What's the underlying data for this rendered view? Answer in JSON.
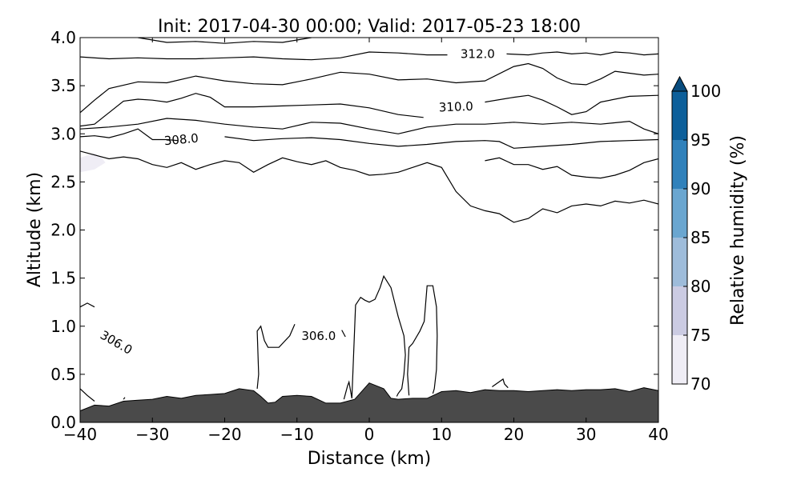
{
  "chart_data": {
    "type": "contour",
    "title": "Init: 2017-04-30 00:00; Valid: 2017-05-23 18:00",
    "xlabel": "Distance (km)",
    "ylabel": "Altitude (km)",
    "xlim": [
      -40,
      40
    ],
    "ylim": [
      0,
      4
    ],
    "xticks": [
      "−40",
      "−30",
      "−20",
      "−10",
      "0",
      "10",
      "20",
      "30",
      "40"
    ],
    "yticks": [
      "0.0",
      "0.5",
      "1.0",
      "1.5",
      "2.0",
      "2.5",
      "3.0",
      "3.5",
      "4.0"
    ],
    "colorbar": {
      "label": "Relative humidity (%)",
      "levels": [
        70,
        75,
        80,
        85,
        90,
        95,
        100
      ],
      "tick_labels": [
        "70",
        "75",
        "80",
        "85",
        "90",
        "95",
        "100"
      ],
      "colors": [
        "#efedf5",
        "#cbcbe2",
        "#9ebcda",
        "#6aa6d0",
        "#3081bb",
        "#0d5f9a",
        "#084c7e"
      ],
      "extend": "max"
    },
    "terrain": {
      "color": "#4a4a4a",
      "x": [
        -40,
        -38,
        -36,
        -34,
        -32,
        -30,
        -28,
        -26,
        -24,
        -22,
        -20,
        -18,
        -16,
        -15,
        -14,
        -13,
        -12,
        -10,
        -8,
        -6,
        -4,
        -2,
        0,
        2,
        3,
        4,
        6,
        8,
        10,
        12,
        14,
        16,
        18,
        20,
        22,
        24,
        26,
        28,
        30,
        32,
        34,
        36,
        38,
        40
      ],
      "y": [
        0.12,
        0.18,
        0.17,
        0.22,
        0.23,
        0.24,
        0.27,
        0.25,
        0.28,
        0.29,
        0.3,
        0.35,
        0.33,
        0.27,
        0.2,
        0.21,
        0.27,
        0.28,
        0.27,
        0.2,
        0.2,
        0.24,
        0.41,
        0.35,
        0.25,
        0.24,
        0.25,
        0.25,
        0.32,
        0.33,
        0.31,
        0.34,
        0.33,
        0.33,
        0.32,
        0.33,
        0.34,
        0.33,
        0.34,
        0.34,
        0.35,
        0.32,
        0.36,
        0.33
      ]
    },
    "humidity_patch": {
      "level": "70-75",
      "x": [
        -40,
        -38,
        -37,
        -36.5,
        -38,
        -40
      ],
      "y": [
        2.75,
        2.8,
        2.75,
        2.7,
        2.63,
        2.6
      ]
    },
    "contour_labels": [
      {
        "text": "312.0",
        "x": 15,
        "y": 3.83,
        "rotation": 0
      },
      {
        "text": "310.0",
        "x": 12,
        "y": 3.28,
        "rotation": -2
      },
      {
        "text": "308.0",
        "x": -26,
        "y": 2.94,
        "rotation": -5
      },
      {
        "text": "306.0",
        "x": -35,
        "y": 0.83,
        "rotation": 30
      },
      {
        "text": "306.0",
        "x": -7,
        "y": 0.9,
        "rotation": 0
      }
    ],
    "contours": [
      {
        "level": "top",
        "x": [
          -32,
          -28,
          -24,
          -20,
          -16,
          -12,
          -8
        ],
        "y": [
          4.0,
          3.95,
          3.96,
          3.94,
          3.96,
          3.95,
          4.0
        ]
      },
      {
        "level": "312.0",
        "x": [
          -40,
          -36,
          -32,
          -28,
          -24,
          -20,
          -16,
          -12,
          -8,
          -4,
          0,
          4,
          8,
          10.8,
          null,
          19,
          22,
          24,
          26,
          28,
          30,
          32,
          34,
          36,
          38,
          40
        ],
        "y": [
          3.8,
          3.78,
          3.79,
          3.78,
          3.78,
          3.79,
          3.8,
          3.78,
          3.77,
          3.79,
          3.85,
          3.84,
          3.82,
          3.82,
          null,
          3.83,
          3.82,
          3.84,
          3.85,
          3.83,
          3.84,
          3.82,
          3.85,
          3.84,
          3.82,
          3.83
        ]
      },
      {
        "level": "311.5",
        "x": [
          -40,
          -38,
          -36,
          -32,
          -28,
          -24,
          -20,
          -16,
          -12,
          -8,
          -4,
          0,
          4,
          8,
          12,
          16,
          20,
          22,
          24,
          26,
          28,
          30,
          32,
          34,
          36,
          38,
          40
        ],
        "y": [
          3.22,
          3.35,
          3.47,
          3.54,
          3.53,
          3.6,
          3.55,
          3.52,
          3.51,
          3.57,
          3.64,
          3.62,
          3.56,
          3.57,
          3.53,
          3.55,
          3.7,
          3.73,
          3.68,
          3.58,
          3.52,
          3.51,
          3.57,
          3.65,
          3.63,
          3.61,
          3.62
        ]
      },
      {
        "level": "310.0",
        "x": [
          -40,
          -38,
          -36,
          -34,
          -32,
          -30,
          -28,
          -26,
          -24,
          -22,
          -20,
          -16,
          -12,
          -8,
          -4,
          0,
          4,
          7.5,
          null,
          16,
          20,
          22,
          24,
          26,
          28,
          30,
          32,
          36,
          40
        ],
        "y": [
          3.08,
          3.1,
          3.22,
          3.34,
          3.36,
          3.35,
          3.33,
          3.37,
          3.42,
          3.38,
          3.28,
          3.28,
          3.29,
          3.3,
          3.31,
          3.27,
          3.2,
          3.17,
          null,
          3.33,
          3.38,
          3.4,
          3.35,
          3.28,
          3.2,
          3.23,
          3.33,
          3.39,
          3.4
        ]
      },
      {
        "level": "309.5",
        "x": [
          -40,
          -36,
          -32,
          -28,
          -24,
          -20,
          -16,
          -12,
          -8,
          -4,
          0,
          4,
          8,
          12,
          16,
          20,
          24,
          28,
          32,
          36,
          38,
          40
        ],
        "y": [
          3.05,
          3.07,
          3.1,
          3.16,
          3.14,
          3.1,
          3.07,
          3.05,
          3.12,
          3.11,
          3.05,
          3.0,
          3.07,
          3.1,
          3.1,
          3.12,
          3.1,
          3.12,
          3.1,
          3.13,
          3.05,
          3.0
        ]
      },
      {
        "level": "308.0",
        "x": [
          -40,
          -38,
          -36,
          -34,
          -32,
          -30,
          -28,
          -26.5,
          null,
          -20,
          -16,
          -12,
          -8,
          -4,
          0,
          4,
          8,
          12,
          16,
          18,
          20,
          24,
          28,
          32,
          36,
          40
        ],
        "y": [
          2.97,
          2.98,
          2.96,
          3.0,
          3.05,
          2.94,
          2.94,
          2.93,
          null,
          2.97,
          2.93,
          2.95,
          2.96,
          2.94,
          2.9,
          2.87,
          2.89,
          2.92,
          2.93,
          2.92,
          2.85,
          2.87,
          2.89,
          2.92,
          2.93,
          2.94
        ]
      },
      {
        "level": "307.0",
        "x": [
          -40,
          -38,
          -36,
          -34,
          -32,
          -30,
          -28,
          -26,
          -24,
          -22,
          -20,
          -18,
          -16,
          -14,
          -12,
          -10,
          -8,
          -6,
          -4,
          -2,
          0,
          2,
          4,
          6,
          8,
          10,
          12,
          14,
          16,
          18,
          20,
          22,
          24,
          26,
          28,
          30,
          32,
          34,
          36,
          38,
          40
        ],
        "y": [
          2.82,
          2.78,
          2.74,
          2.76,
          2.74,
          2.68,
          2.65,
          2.7,
          2.63,
          2.68,
          2.72,
          2.7,
          2.6,
          2.68,
          2.75,
          2.71,
          2.68,
          2.72,
          2.65,
          2.62,
          2.57,
          2.58,
          2.6,
          2.65,
          2.7,
          2.65,
          2.4,
          2.25,
          2.2,
          2.17,
          2.08,
          2.12,
          2.22,
          2.18,
          2.25,
          2.27,
          2.25,
          2.3,
          2.28,
          2.31,
          2.27
        ]
      },
      {
        "level": "307.0b",
        "x": [
          16,
          18,
          20,
          22,
          24,
          26,
          28,
          30,
          32,
          34,
          36,
          38,
          40
        ],
        "y": [
          2.72,
          2.75,
          2.68,
          2.68,
          2.63,
          2.66,
          2.57,
          2.55,
          2.54,
          2.57,
          2.62,
          2.7,
          2.74
        ]
      },
      {
        "level": "306.0",
        "x": [
          -40,
          -39,
          -38
        ],
        "y": [
          1.2,
          1.24,
          1.2
        ]
      },
      {
        "level": "306.0",
        "x": [
          -40,
          -39,
          -38
        ],
        "y": [
          0.35,
          0.28,
          0.22
        ]
      },
      {
        "level": "306.0",
        "x": [
          -34,
          -33.8
        ],
        "y": [
          0.24,
          0.26
        ]
      },
      {
        "level": "306.0",
        "x": [
          -15.5,
          -15.3,
          -15.5,
          -15,
          -14.5,
          -14,
          -12.5,
          -11,
          -10.3
        ],
        "y": [
          0.35,
          0.5,
          0.95,
          1.0,
          0.85,
          0.78,
          0.78,
          0.9,
          1.02
        ]
      },
      {
        "level": "306.0",
        "x": [
          -3.5,
          -3,
          -2.8,
          -2.4,
          -1.9,
          -1.2,
          -0.6,
          0,
          0.8,
          1.5,
          2,
          3,
          4,
          4.8,
          5,
          4.8,
          4.5,
          4,
          3.8
        ],
        "y": [
          0.24,
          0.38,
          0.42,
          0.25,
          1.22,
          1.3,
          1.27,
          1.25,
          1.28,
          1.4,
          1.52,
          1.4,
          1.1,
          0.9,
          0.7,
          0.5,
          0.35,
          0.3,
          0.27
        ]
      },
      {
        "level": "306.0",
        "x": [
          -3.8,
          -3.3
        ],
        "y": [
          0.96,
          0.89
        ]
      },
      {
        "level": "306.0",
        "x": [
          5.5,
          5.3,
          5.5,
          6,
          7,
          7.6,
          8,
          8.8,
          9.3,
          9.4,
          9.3,
          9.0,
          8.8
        ],
        "y": [
          0.28,
          0.5,
          0.78,
          0.82,
          0.95,
          1.05,
          1.42,
          1.42,
          1.2,
          0.9,
          0.55,
          0.35,
          0.3
        ]
      },
      {
        "level": "306.0",
        "x": [
          17,
          18.5,
          18.7,
          19.2
        ],
        "y": [
          0.37,
          0.45,
          0.4,
          0.36
        ]
      }
    ]
  }
}
